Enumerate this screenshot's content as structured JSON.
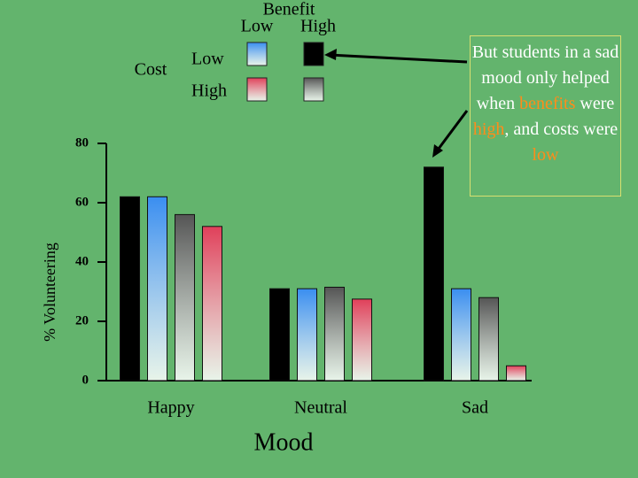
{
  "chart_data": {
    "type": "bar",
    "y_label": "% Volunteering",
    "x_label": "Mood",
    "categories": [
      "Happy",
      "Neutral",
      "Sad"
    ],
    "series": [
      {
        "color": "#000000",
        "values": [
          62,
          31,
          72
        ]
      },
      {
        "color": "#3a8ef0",
        "values": [
          62,
          31,
          31
        ]
      },
      {
        "color": "#555555",
        "values": [
          56,
          31.5,
          28
        ]
      },
      {
        "color": "#e0405a",
        "values": [
          52,
          27.5,
          5
        ]
      }
    ],
    "ylim": [
      0,
      80
    ],
    "yticks": [
      0,
      20,
      40,
      60,
      80
    ],
    "legend": {
      "column_title": "Benefit",
      "columns": [
        "Low",
        "High"
      ],
      "row_title": "Cost",
      "rows": [
        "Low",
        "High"
      ]
    },
    "annotation": [
      {
        "text": "But students in a sad mood only helped when ",
        "color": "#ffffff"
      },
      {
        "text": "benefits",
        "color": "#ff8c1a"
      },
      {
        "text": " were ",
        "color": "#ffffff"
      },
      {
        "text": "high",
        "color": "#ff8c1a"
      },
      {
        "text": ", and costs were ",
        "color": "#ffffff"
      },
      {
        "text": "low",
        "color": "#ff8c1a"
      }
    ]
  }
}
